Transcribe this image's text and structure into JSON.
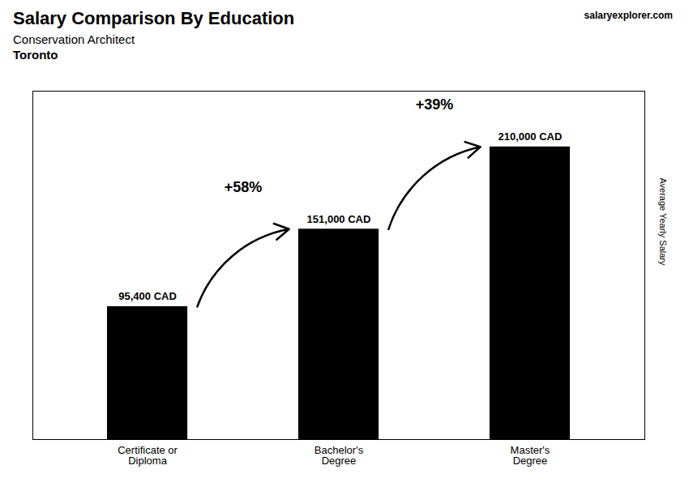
{
  "chart_data": {
    "type": "bar",
    "title": "Salary Comparison By Education",
    "subtitle": [
      "Conservation Architect",
      "Toronto"
    ],
    "ylabel": "Average Yearly Salary",
    "categories": [
      "Certificate or\nDiploma",
      "Bachelor's\nDegree",
      "Master's\nDegree"
    ],
    "values": [
      95400,
      151000,
      210000
    ],
    "value_labels": [
      "95,400 CAD",
      "151,000 CAD",
      "210,000 CAD"
    ],
    "data_labels": true,
    "ylim": [
      0,
      250000
    ],
    "tick_labels": "x",
    "grid": false,
    "annotations": [
      {
        "text": "+58%",
        "from": "Certificate or\nDiploma",
        "to": "Bachelor's\nDegree"
      },
      {
        "text": "+39%",
        "from": "Bachelor's\nDegree",
        "to": "Master's\nDegree"
      },
      {
        "text": "salaryexplorer.com"
      }
    ]
  }
}
